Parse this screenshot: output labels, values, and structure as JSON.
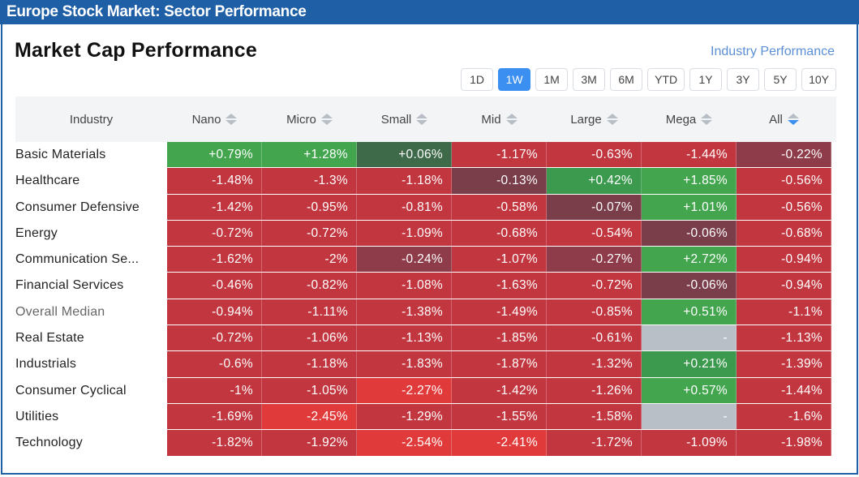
{
  "banner": "Europe Stock Market: Sector Performance",
  "title": "Market Cap Performance",
  "industry_link": "Industry Performance",
  "periods": [
    {
      "label": "1D",
      "active": false
    },
    {
      "label": "1W",
      "active": true
    },
    {
      "label": "1M",
      "active": false
    },
    {
      "label": "3M",
      "active": false
    },
    {
      "label": "6M",
      "active": false
    },
    {
      "label": "YTD",
      "active": false
    },
    {
      "label": "1Y",
      "active": false
    },
    {
      "label": "3Y",
      "active": false
    },
    {
      "label": "5Y",
      "active": false
    },
    {
      "label": "10Y",
      "active": false
    }
  ],
  "headers": {
    "industry": "Industry",
    "columns": [
      "Nano",
      "Micro",
      "Small",
      "Mid",
      "Large",
      "Mega",
      "All"
    ],
    "active_sort": "All"
  },
  "rows": [
    {
      "name": "Basic Materials",
      "values": [
        0.79,
        1.28,
        0.06,
        -1.17,
        -0.63,
        -1.44,
        -0.22
      ],
      "labels": [
        "+0.79%",
        "+1.28%",
        "+0.06%",
        "-1.17%",
        "-0.63%",
        "-1.44%",
        "-0.22%"
      ]
    },
    {
      "name": "Healthcare",
      "values": [
        -1.48,
        -1.3,
        -1.18,
        -0.13,
        0.42,
        1.85,
        -0.56
      ],
      "labels": [
        "-1.48%",
        "-1.3%",
        "-1.18%",
        "-0.13%",
        "+0.42%",
        "+1.85%",
        "-0.56%"
      ]
    },
    {
      "name": "Consumer Defensive",
      "values": [
        -1.42,
        -0.95,
        -0.81,
        -0.58,
        -0.07,
        1.01,
        -0.56
      ],
      "labels": [
        "-1.42%",
        "-0.95%",
        "-0.81%",
        "-0.58%",
        "-0.07%",
        "+1.01%",
        "-0.56%"
      ]
    },
    {
      "name": "Energy",
      "values": [
        -0.72,
        -0.72,
        -1.09,
        -0.68,
        -0.54,
        -0.06,
        -0.68
      ],
      "labels": [
        "-0.72%",
        "-0.72%",
        "-1.09%",
        "-0.68%",
        "-0.54%",
        "-0.06%",
        "-0.68%"
      ]
    },
    {
      "name": "Communication Se...",
      "values": [
        -1.62,
        -2,
        -0.24,
        -1.07,
        -0.27,
        2.72,
        -0.94
      ],
      "labels": [
        "-1.62%",
        "-2%",
        "-0.24%",
        "-1.07%",
        "-0.27%",
        "+2.72%",
        "-0.94%"
      ]
    },
    {
      "name": "Financial Services",
      "values": [
        -0.46,
        -0.82,
        -1.08,
        -1.63,
        -0.72,
        -0.06,
        -0.94
      ],
      "labels": [
        "-0.46%",
        "-0.82%",
        "-1.08%",
        "-1.63%",
        "-0.72%",
        "-0.06%",
        "-0.94%"
      ]
    },
    {
      "name": "Overall Median",
      "muted": true,
      "values": [
        -0.94,
        -1.11,
        -1.38,
        -1.49,
        -0.85,
        0.51,
        -1.1
      ],
      "labels": [
        "-0.94%",
        "-1.11%",
        "-1.38%",
        "-1.49%",
        "-0.85%",
        "+0.51%",
        "-1.1%"
      ]
    },
    {
      "name": "Real Estate",
      "values": [
        -0.72,
        -1.06,
        -1.13,
        -1.85,
        -0.61,
        null,
        -1.13
      ],
      "labels": [
        "-0.72%",
        "-1.06%",
        "-1.13%",
        "-1.85%",
        "-0.61%",
        "-",
        "-1.13%"
      ]
    },
    {
      "name": "Industrials",
      "values": [
        -0.6,
        -1.18,
        -1.83,
        -1.87,
        -1.32,
        0.21,
        -1.39
      ],
      "labels": [
        "-0.6%",
        "-1.18%",
        "-1.83%",
        "-1.87%",
        "-1.32%",
        "+0.21%",
        "-1.39%"
      ]
    },
    {
      "name": "Consumer Cyclical",
      "values": [
        -1,
        -1.05,
        -2.27,
        -1.42,
        -1.26,
        0.57,
        -1.44
      ],
      "labels": [
        "-1%",
        "-1.05%",
        "-2.27%",
        "-1.42%",
        "-1.26%",
        "+0.57%",
        "-1.44%"
      ]
    },
    {
      "name": "Utilities",
      "values": [
        -1.69,
        -2.45,
        -1.29,
        -1.55,
        -1.58,
        null,
        -1.6
      ],
      "labels": [
        "-1.69%",
        "-2.45%",
        "-1.29%",
        "-1.55%",
        "-1.58%",
        "-",
        "-1.6%"
      ]
    },
    {
      "name": "Technology",
      "values": [
        -1.82,
        -1.92,
        -2.54,
        -2.41,
        -1.72,
        -1.09,
        -1.98
      ],
      "labels": [
        "-1.82%",
        "-1.92%",
        "-2.54%",
        "-2.41%",
        "-1.72%",
        "-1.09%",
        "-1.98%"
      ]
    }
  ],
  "colors": {
    "banner": "#1f5fa6",
    "accent": "#3b8ff0",
    "na": "#b9bfc7"
  }
}
